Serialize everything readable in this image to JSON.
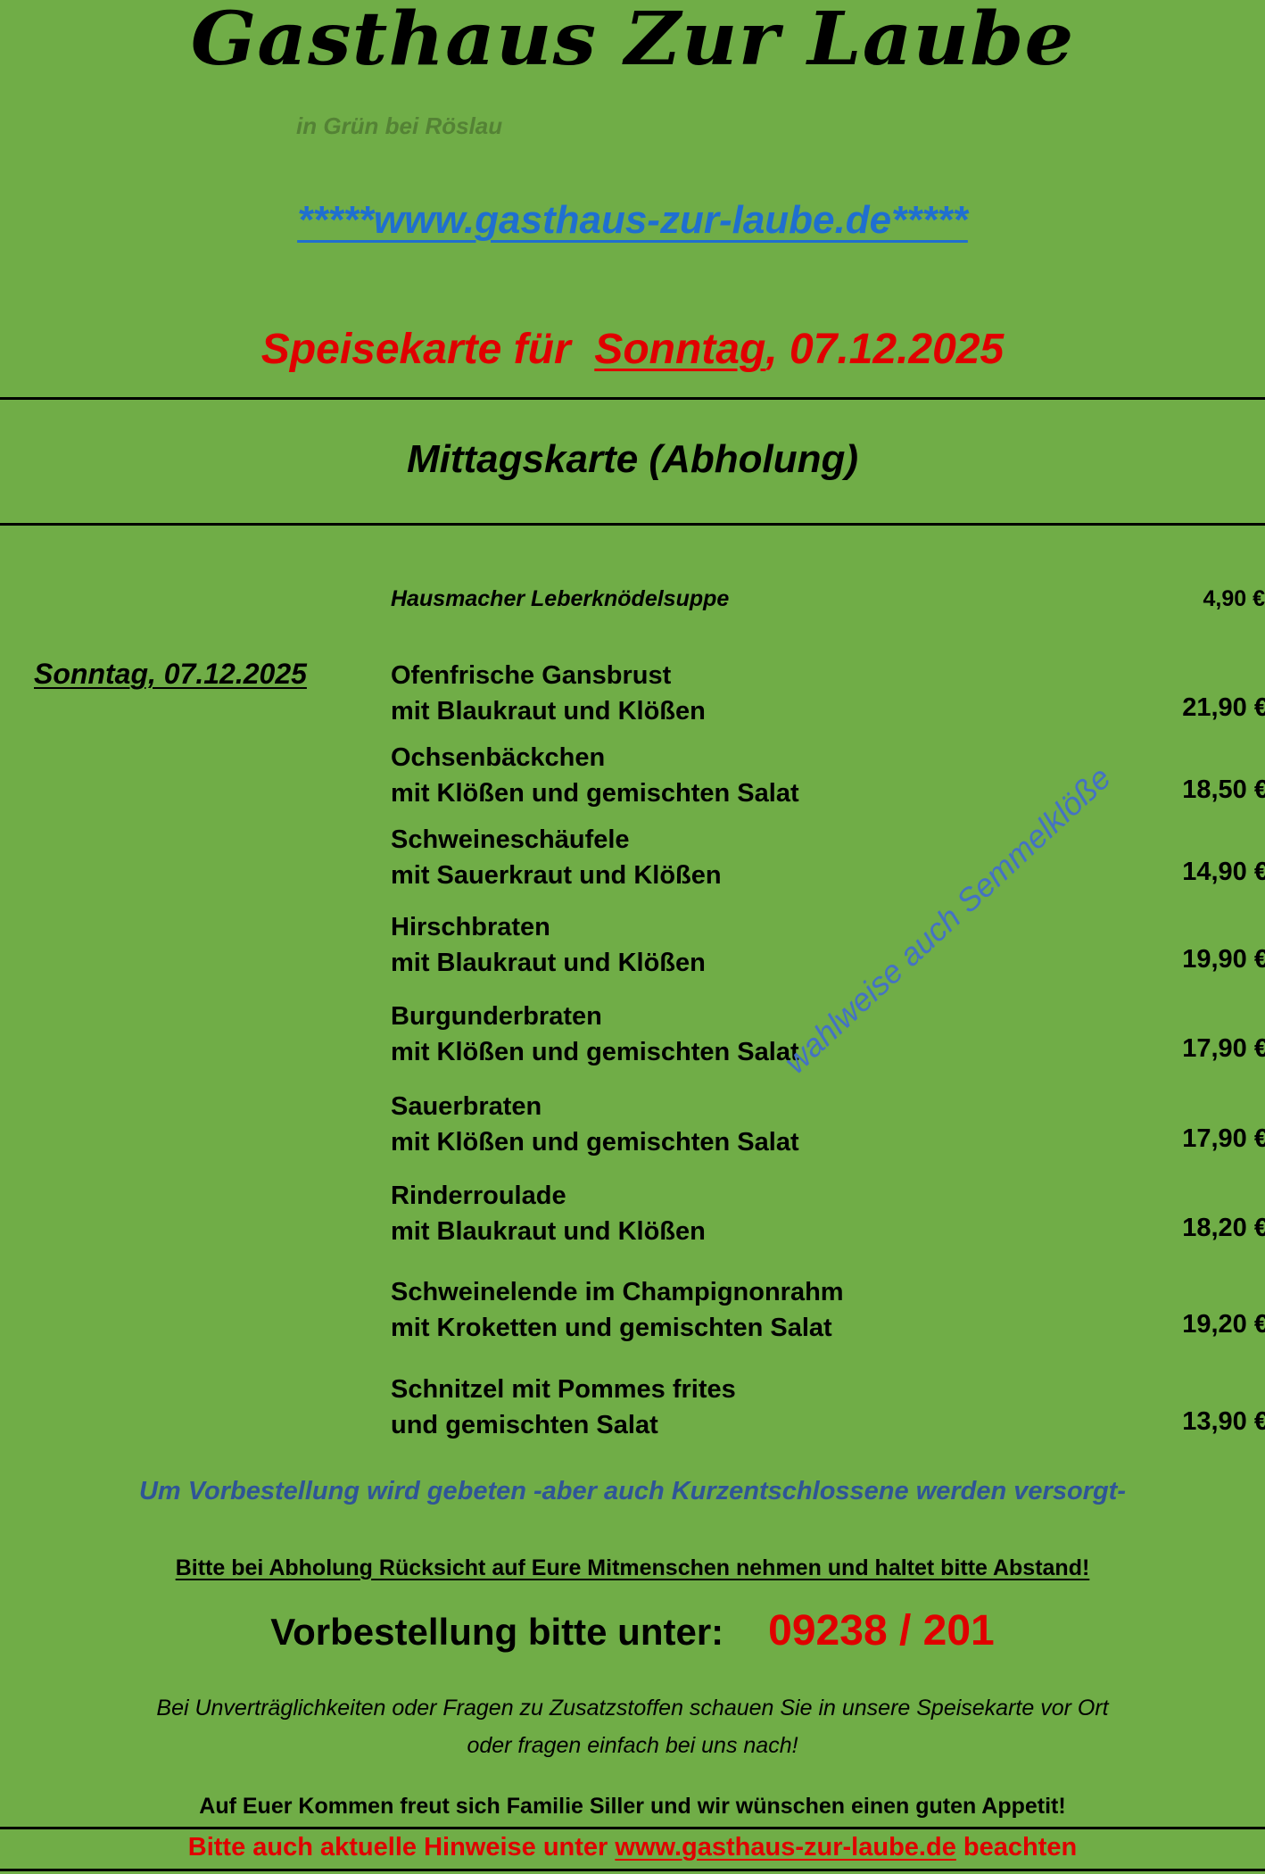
{
  "header": {
    "title": "Gasthaus Zur Laube",
    "subtitle": "in Grün bei Röslau",
    "url_prefix": "*****",
    "url": "www.gasthaus-zur-laube.de",
    "url_suffix": "*****",
    "heading_prefix": "Speisekarte für",
    "heading_day": "Sonntag",
    "heading_date": ", 07.12.2025"
  },
  "section_title": "Mittagskarte (Abholung)",
  "soup": {
    "name": "Hausmacher Leberknödelsuppe",
    "price": "4,90 €"
  },
  "day_label": "Sonntag, 07.12.2025",
  "dishes": [
    {
      "line1": "Ofenfrische Gansbrust",
      "line2": "mit Blaukraut und Klößen",
      "price": "21,90 €"
    },
    {
      "line1": "Ochsenbäckchen",
      "line2": "mit Klößen und gemischten Salat",
      "price": "18,50 €"
    },
    {
      "line1": "Schweineschäufele",
      "line2": "mit Sauerkraut und Klößen",
      "price": "14,90 €"
    },
    {
      "line1": "Hirschbraten",
      "line2": "mit Blaukraut und Klößen",
      "price": "19,90 €"
    },
    {
      "line1": "Burgunderbraten",
      "line2": "mit Klößen und gemischten Salat",
      "price": "17,90 €"
    },
    {
      "line1": "Sauerbraten",
      "line2": "mit Klößen und gemischten Salat",
      "price": "17,90 €"
    },
    {
      "line1": "Rinderroulade",
      "line2": "mit Blaukraut und Klößen",
      "price": "18,20 €"
    },
    {
      "line1": "Schweinelende im Champignonrahm",
      "line2": "mit Kroketten und gemischten Salat",
      "price": "19,20 €"
    },
    {
      "line1": "Schnitzel mit Pommes frites",
      "line2": "und gemischten Salat",
      "price": "13,90 €"
    }
  ],
  "watermark": "wahlweise auch Semmelklöße",
  "notes": {
    "preorder": "Um Vorbestellung wird gebeten  -aber auch Kurzentschlossene werden versorgt-",
    "distance": "Bitte bei Abholung Rücksicht auf Eure Mitmenschen nehmen und haltet bitte Abstand!",
    "order_label": "Vorbestellung bitte unter:",
    "phone": "09238 / 201",
    "allergy_line1": "Bei Unverträglichkeiten oder Fragen zu Zusatzstoffen schauen Sie in unsere Speisekarte vor Ort",
    "allergy_line2": "oder fragen einfach bei uns nach!",
    "thanks": "Auf Euer Kommen freut sich Familie Siller und wir wünschen einen guten Appetit!"
  },
  "footer": {
    "prefix": "Bitte auch aktuelle Hinweise unter",
    "link": "www.gasthaus-zur-laube.de",
    "suffix": "beachten"
  },
  "colors": {
    "background": "#70AD47",
    "accent_red": "#E00000",
    "link_blue": "#1F6FD0",
    "note_blue": "#2F5597"
  }
}
